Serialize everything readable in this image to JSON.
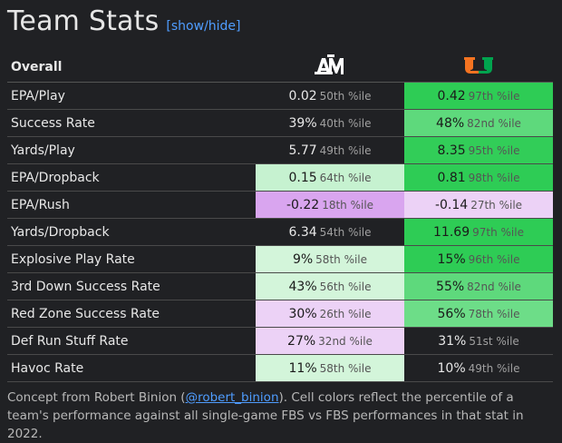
{
  "header": {
    "title": "Team Stats",
    "toggle": "[show/hide]"
  },
  "table": {
    "section": "Overall",
    "teams": [
      {
        "name": "Texas A&M",
        "icon": "texas-am-logo-icon",
        "color": "#ffffff"
      },
      {
        "name": "Miami",
        "icon": "miami-logo-icon",
        "color": "#f47321"
      }
    ],
    "rows": [
      {
        "stat": "EPA/Play",
        "a": {
          "value": "0.02",
          "pct": "50th %ile",
          "color": ""
        },
        "b": {
          "value": "0.42",
          "pct": "97th %ile",
          "color": "#2ecc55"
        }
      },
      {
        "stat": "Success Rate",
        "a": {
          "value": "39%",
          "pct": "40th %ile",
          "color": ""
        },
        "b": {
          "value": "48%",
          "pct": "82nd %ile",
          "color": "#5ed97c"
        }
      },
      {
        "stat": "Yards/Play",
        "a": {
          "value": "5.77",
          "pct": "49th %ile",
          "color": ""
        },
        "b": {
          "value": "8.35",
          "pct": "95th %ile",
          "color": "#32cd58"
        }
      },
      {
        "stat": "EPA/Dropback",
        "a": {
          "value": "0.15",
          "pct": "64th %ile",
          "color": "#c6f2d0"
        },
        "b": {
          "value": "0.81",
          "pct": "98th %ile",
          "color": "#2ecc55"
        }
      },
      {
        "stat": "EPA/Rush",
        "a": {
          "value": "-0.22",
          "pct": "18th %ile",
          "color": "#d9a5ef"
        },
        "b": {
          "value": "-0.14",
          "pct": "27th %ile",
          "color": "#ecd2f6"
        }
      },
      {
        "stat": "Yards/Dropback",
        "a": {
          "value": "6.34",
          "pct": "54th %ile",
          "color": ""
        },
        "b": {
          "value": "11.69",
          "pct": "97th %ile",
          "color": "#2ecc55"
        }
      },
      {
        "stat": "Explosive Play Rate",
        "a": {
          "value": "9%",
          "pct": "58th %ile",
          "color": "#d3f5da"
        },
        "b": {
          "value": "15%",
          "pct": "96th %ile",
          "color": "#2ecc55"
        }
      },
      {
        "stat": "3rd Down Success Rate",
        "a": {
          "value": "43%",
          "pct": "56th %ile",
          "color": "#d3f5da"
        },
        "b": {
          "value": "55%",
          "pct": "82nd %ile",
          "color": "#5ed97c"
        }
      },
      {
        "stat": "Red Zone Success Rate",
        "a": {
          "value": "30%",
          "pct": "26th %ile",
          "color": "#ecd2f6"
        },
        "b": {
          "value": "56%",
          "pct": "78th %ile",
          "color": "#6ddd88"
        }
      },
      {
        "stat": "Def Run Stuff Rate",
        "a": {
          "value": "27%",
          "pct": "32nd %ile",
          "color": "#ecd2f6"
        },
        "b": {
          "value": "31%",
          "pct": "51st %ile",
          "color": ""
        }
      },
      {
        "stat": "Havoc Rate",
        "a": {
          "value": "11%",
          "pct": "58th %ile",
          "color": "#d3f5da"
        },
        "b": {
          "value": "10%",
          "pct": "49th %ile",
          "color": ""
        }
      }
    ]
  },
  "footnote": {
    "prefix": "Concept from Robert Binion (",
    "link": "@robert_binion",
    "suffix": "). Cell colors reflect the percentile of a team's performance against all single-game FBS vs FBS performances in that stat in 2022."
  }
}
